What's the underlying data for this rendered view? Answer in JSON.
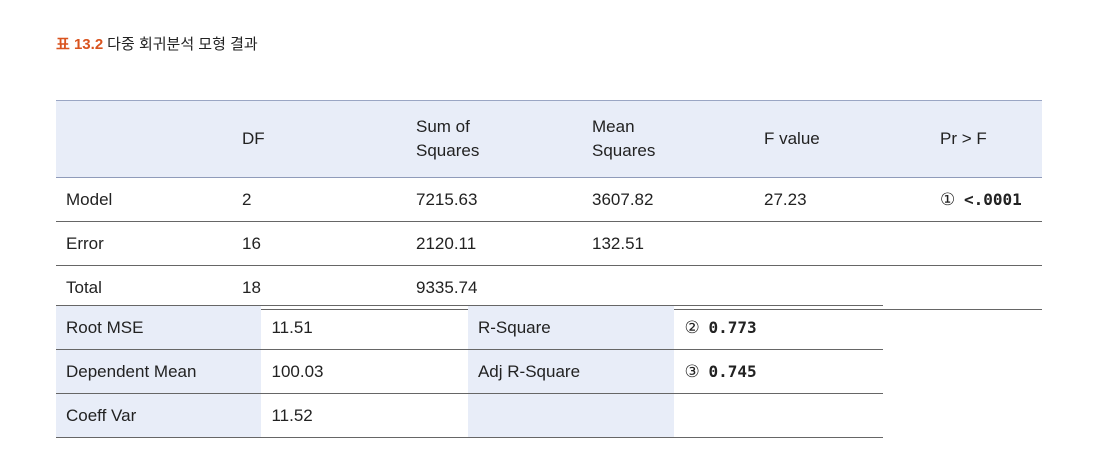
{
  "caption": {
    "number": "표 13.2",
    "title": "다중 회귀분석 모형 결과"
  },
  "anova": {
    "headers": [
      "",
      "DF",
      "Sum of Squares",
      "Mean Squares",
      "F value",
      "Pr > F"
    ],
    "rows": [
      {
        "source": "Model",
        "df": "2",
        "ss": "7215.63",
        "ms": "3607.82",
        "f": "27.23",
        "marker": "①",
        "p": "<.0001"
      },
      {
        "source": "Error",
        "df": "16",
        "ss": "2120.11",
        "ms": "132.51",
        "f": "",
        "marker": "",
        "p": ""
      },
      {
        "source": "Total",
        "df": "18",
        "ss": "9335.74",
        "ms": "",
        "f": "",
        "marker": "",
        "p": ""
      }
    ]
  },
  "fit": {
    "rows": [
      {
        "label1": "Root MSE",
        "value1": "11.51",
        "label2": "R-Square",
        "marker": "②",
        "value2": "0.773"
      },
      {
        "label1": "Dependent Mean",
        "value1": "100.03",
        "label2": "Adj R-Square",
        "marker": "③",
        "value2": "0.745"
      },
      {
        "label1": "Coeff Var",
        "value1": "11.52",
        "label2": "",
        "marker": "",
        "value2": ""
      }
    ]
  },
  "colors": {
    "accent": "#d9541f",
    "header_bg": "#e8edf8"
  }
}
